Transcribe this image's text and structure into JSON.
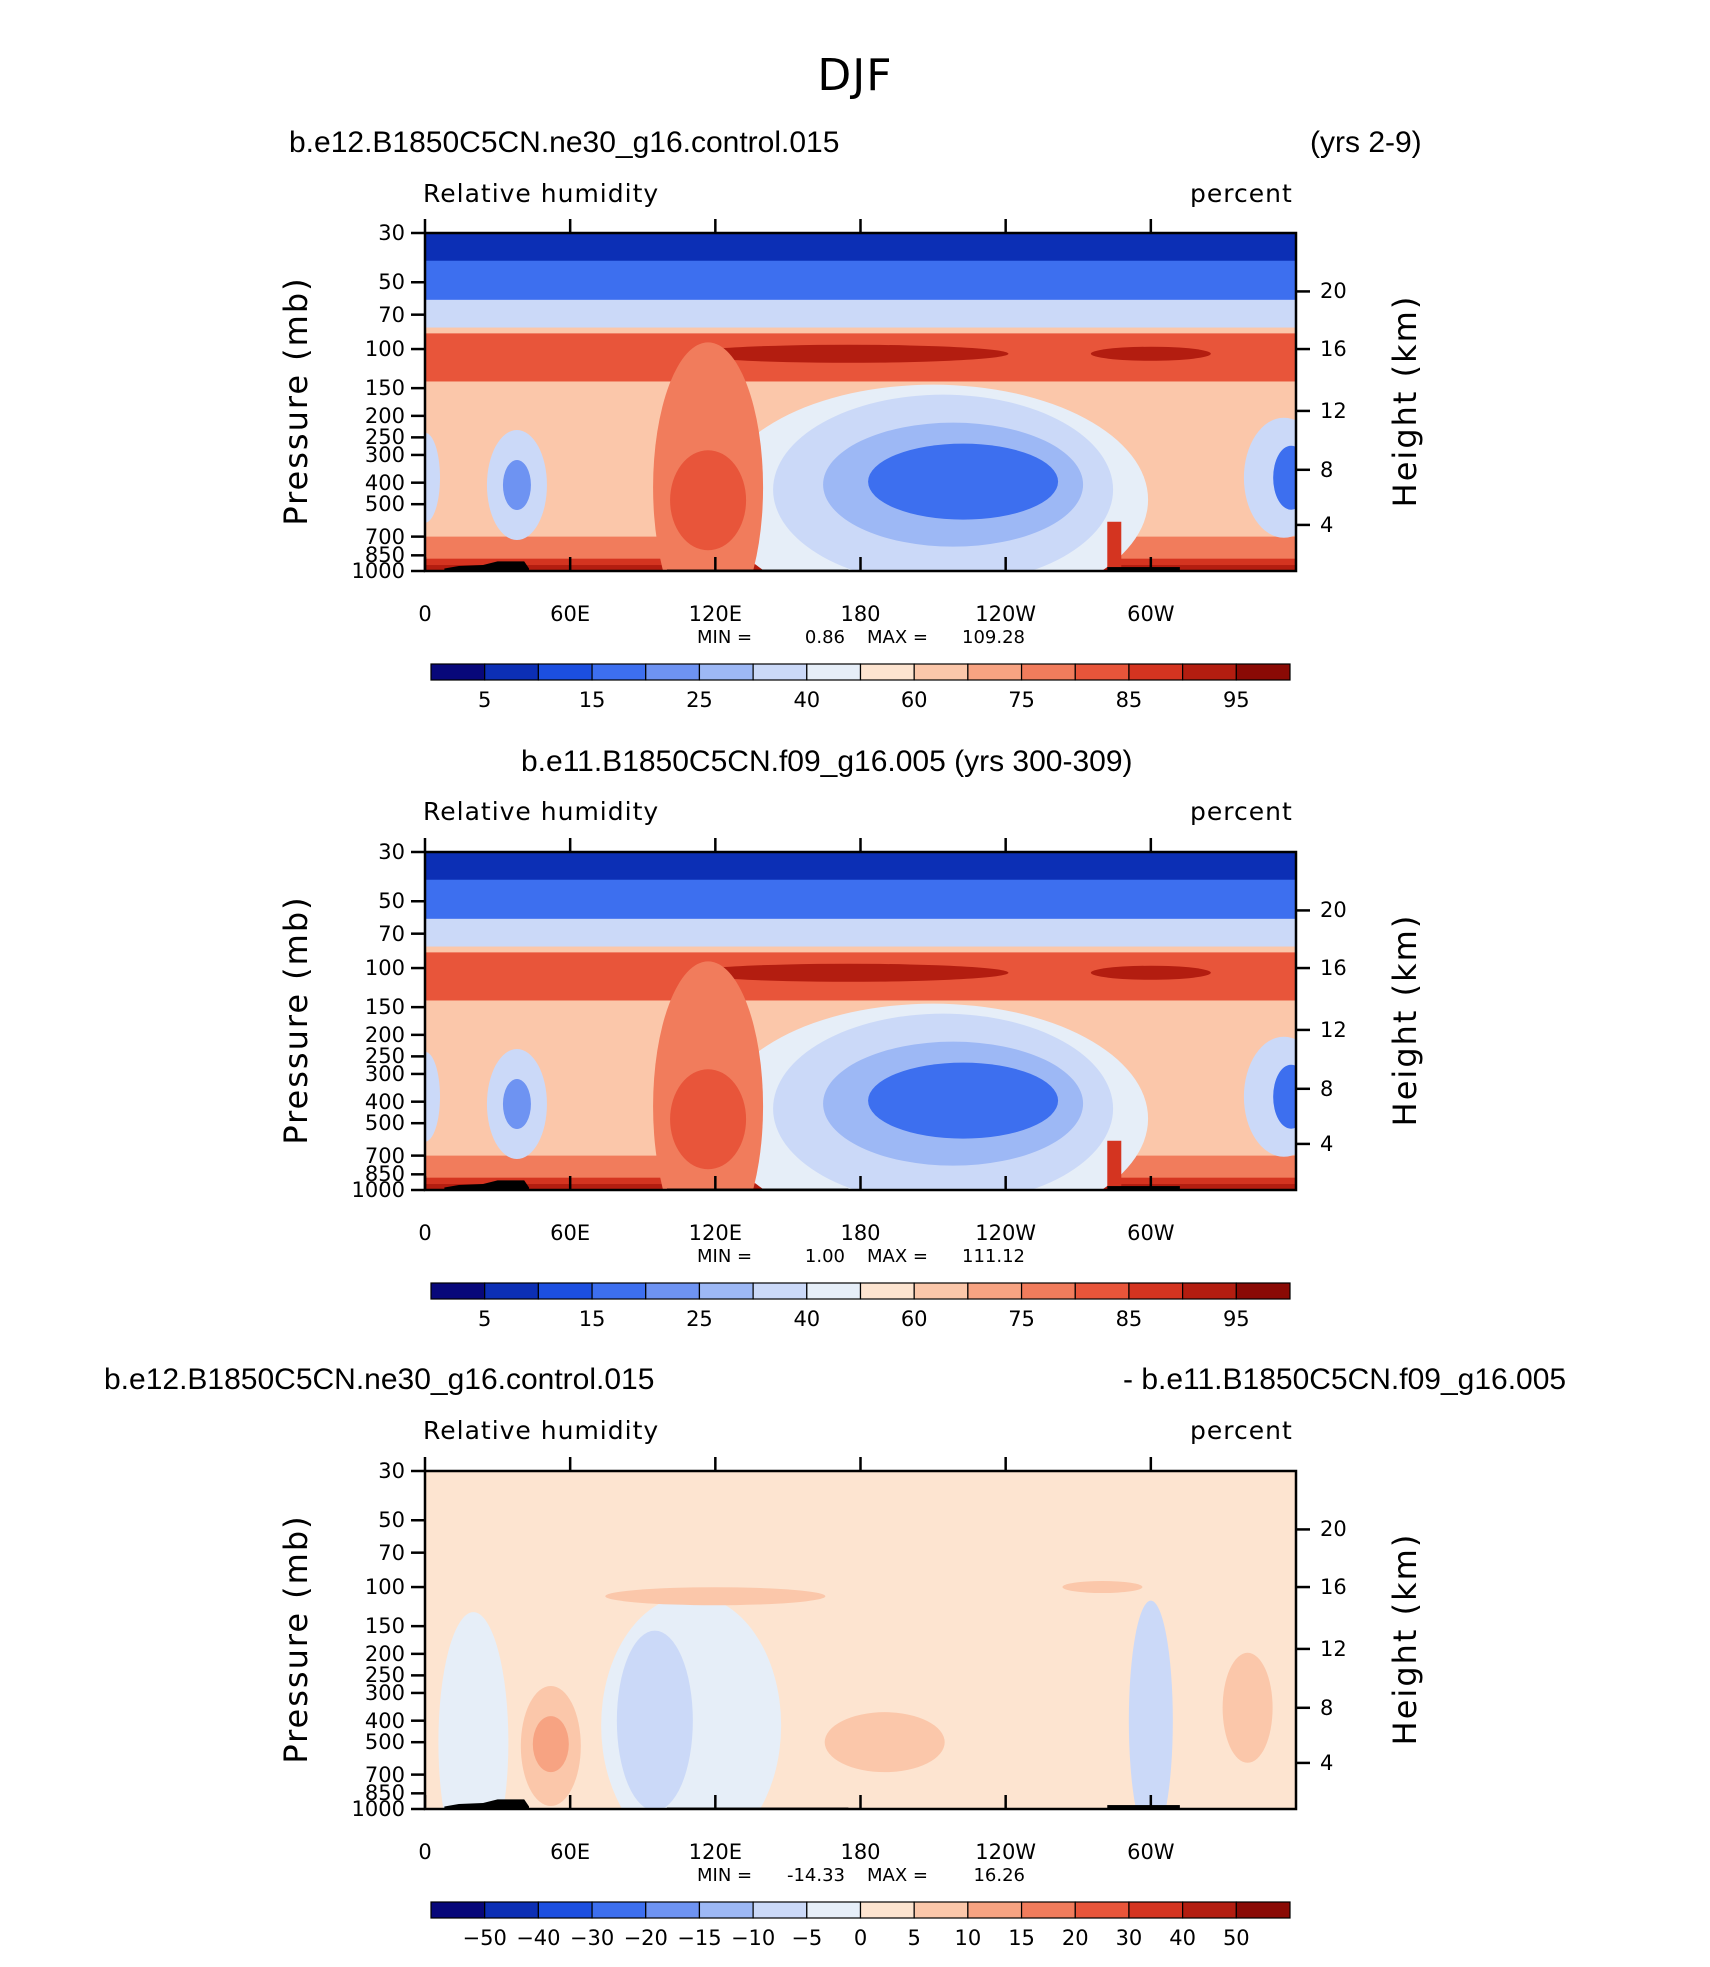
{
  "figure": {
    "title": "DJF"
  },
  "chart_data": [
    {
      "type": "heatmap",
      "header_left": "b.e12.B1850C5CN.ne30_g16.control.015",
      "header_right": "(yrs 2-9)",
      "variable": "Relative humidity",
      "units": "percent",
      "ylabel": "Pressure (mb)",
      "y2label": "Height (km)",
      "xlabel": "",
      "x_ticks": [
        "0",
        "60E",
        "120E",
        "180",
        "120W",
        "60W"
      ],
      "y_ticks": [
        "30",
        "50",
        "70",
        "100",
        "150",
        "200",
        "250",
        "300",
        "400",
        "500",
        "700",
        "850",
        "1000"
      ],
      "y2_ticks": [
        "20",
        "16",
        "12",
        "8",
        "4"
      ],
      "xlim": [
        0,
        360
      ],
      "ylim": [
        1000,
        30
      ],
      "stats": {
        "min_label": "MIN =",
        "min": "0.86",
        "max_label": "MAX =",
        "max": "109.28"
      },
      "colorbar": {
        "labels": [
          "5",
          "15",
          "25",
          "40",
          "60",
          "75",
          "85",
          "95"
        ],
        "colors": [
          "#08087a",
          "#0c2fb5",
          "#1c4fe0",
          "#3d6fef",
          "#6e93f2",
          "#9db8f5",
          "#cbd9f8",
          "#e6eef8",
          "#fde4d0",
          "#fbc7aa",
          "#f7a382",
          "#f17c5c",
          "#e8553a",
          "#d43420",
          "#b31d10",
          "#8a0a05"
        ]
      }
    },
    {
      "type": "heatmap",
      "header_center": "b.e11.B1850C5CN.f09_g16.005 (yrs 300-309)",
      "variable": "Relative humidity",
      "units": "percent",
      "ylabel": "Pressure (mb)",
      "y2label": "Height (km)",
      "x_ticks": [
        "0",
        "60E",
        "120E",
        "180",
        "120W",
        "60W"
      ],
      "y_ticks": [
        "30",
        "50",
        "70",
        "100",
        "150",
        "200",
        "250",
        "300",
        "400",
        "500",
        "700",
        "850",
        "1000"
      ],
      "y2_ticks": [
        "20",
        "16",
        "12",
        "8",
        "4"
      ],
      "xlim": [
        0,
        360
      ],
      "ylim": [
        1000,
        30
      ],
      "stats": {
        "min_label": "MIN =",
        "min": "1.00",
        "max_label": "MAX =",
        "max": "111.12"
      },
      "colorbar": {
        "labels": [
          "5",
          "15",
          "25",
          "40",
          "60",
          "75",
          "85",
          "95"
        ],
        "colors": [
          "#08087a",
          "#0c2fb5",
          "#1c4fe0",
          "#3d6fef",
          "#6e93f2",
          "#9db8f5",
          "#cbd9f8",
          "#e6eef8",
          "#fde4d0",
          "#fbc7aa",
          "#f7a382",
          "#f17c5c",
          "#e8553a",
          "#d43420",
          "#b31d10",
          "#8a0a05"
        ]
      }
    },
    {
      "type": "heatmap",
      "header_left": "b.e12.B1850C5CN.ne30_g16.control.015",
      "header_right": "- b.e11.B1850C5CN.f09_g16.005",
      "variable": "Relative humidity",
      "units": "percent",
      "ylabel": "Pressure (mb)",
      "y2label": "Height (km)",
      "x_ticks": [
        "0",
        "60E",
        "120E",
        "180",
        "120W",
        "60W"
      ],
      "y_ticks": [
        "30",
        "50",
        "70",
        "100",
        "150",
        "200",
        "250",
        "300",
        "400",
        "500",
        "700",
        "850",
        "1000"
      ],
      "y2_ticks": [
        "20",
        "16",
        "12",
        "8",
        "4"
      ],
      "xlim": [
        0,
        360
      ],
      "ylim": [
        1000,
        30
      ],
      "stats": {
        "min_label": "MIN =",
        "min": "-14.33",
        "max_label": "MAX =",
        "max": "16.26"
      },
      "colorbar": {
        "labels": [
          "−50",
          "−40",
          "−30",
          "−20",
          "−15",
          "−10",
          "−5",
          "0",
          "5",
          "10",
          "15",
          "20",
          "30",
          "40",
          "50"
        ],
        "colors": [
          "#08087a",
          "#0c2fb5",
          "#1c4fe0",
          "#3d6fef",
          "#6e93f2",
          "#9db8f5",
          "#cbd9f8",
          "#e6eef8",
          "#fde4d0",
          "#fbc7aa",
          "#f7a382",
          "#f17c5c",
          "#e8553a",
          "#d43420",
          "#b31d10",
          "#8a0a05"
        ]
      }
    }
  ]
}
